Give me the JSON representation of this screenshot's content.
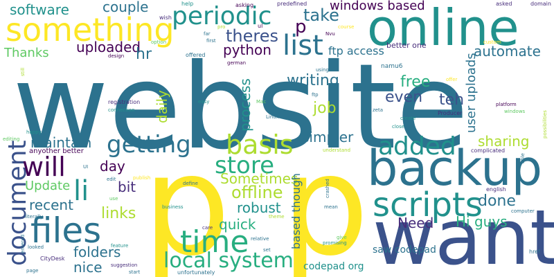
{
  "palette": {
    "dark-purple": "#440154",
    "indigo": "#472d7b",
    "slate-blue": "#3b528b",
    "steel-blue": "#2c728e",
    "teal": "#21918c",
    "sea-green": "#28ae80",
    "green": "#5ec962",
    "lime": "#addc30",
    "yellow": "#fde725"
  },
  "words": [
    {
      "text": "website"
    },
    {
      "text": "want"
    },
    {
      "text": "p"
    },
    {
      "text": "p"
    },
    {
      "text": "online"
    },
    {
      "text": "backup"
    },
    {
      "text": "something"
    },
    {
      "text": "files"
    },
    {
      "text": "scripts"
    },
    {
      "text": "periodic"
    },
    {
      "text": "list"
    },
    {
      "text": "document"
    },
    {
      "text": "time"
    },
    {
      "text": "will"
    },
    {
      "text": "basis"
    },
    {
      "text": "added"
    },
    {
      "text": "getting"
    },
    {
      "text": "store"
    },
    {
      "text": "local system"
    },
    {
      "text": "li"
    },
    {
      "text": "software"
    },
    {
      "text": "couple"
    },
    {
      "text": "take"
    },
    {
      "text": "windows based"
    },
    {
      "text": "theres"
    },
    {
      "text": "p"
    },
    {
      "text": "python"
    },
    {
      "text": "uploaded"
    },
    {
      "text": "hr"
    },
    {
      "text": "automate"
    },
    {
      "text": "ftp access"
    },
    {
      "text": "Thanks"
    },
    {
      "text": "writing"
    },
    {
      "text": "free"
    },
    {
      "text": "even"
    },
    {
      "text": "job"
    },
    {
      "text": "process"
    },
    {
      "text": "daily"
    },
    {
      "text": "user uploads"
    },
    {
      "text": "teh"
    },
    {
      "text": "maintain"
    },
    {
      "text": "simpler"
    },
    {
      "text": "sharing"
    },
    {
      "text": "day"
    },
    {
      "text": "bit"
    },
    {
      "text": "Sometimes"
    },
    {
      "text": "offline"
    },
    {
      "text": "Update"
    },
    {
      "text": "recent"
    },
    {
      "text": "robust"
    },
    {
      "text": "done"
    },
    {
      "text": "links"
    },
    {
      "text": "quick"
    },
    {
      "text": "Need"
    },
    {
      "text": "Hi guys"
    },
    {
      "text": "folders"
    },
    {
      "text": "nice"
    },
    {
      "text": "based though"
    },
    {
      "text": "saw codepad"
    },
    {
      "text": "codepad org"
    },
    {
      "text": "better one"
    },
    {
      "text": "namu6"
    },
    {
      "text": "predefined"
    },
    {
      "text": "help"
    },
    {
      "text": "asking"
    },
    {
      "text": "wish"
    },
    {
      "text": "asked"
    },
    {
      "text": "domain"
    },
    {
      "text": "option"
    },
    {
      "text": "pro"
    },
    {
      "text": "ul"
    },
    {
      "text": "far"
    },
    {
      "text": "first"
    },
    {
      "text": "course"
    },
    {
      "text": "Nvu"
    },
    {
      "text": "custom"
    },
    {
      "text": "design"
    },
    {
      "text": "offered"
    },
    {
      "text": "german"
    },
    {
      "text": "still"
    },
    {
      "text": "using"
    },
    {
      "text": "offer"
    },
    {
      "text": "registration"
    },
    {
      "text": "connection"
    },
    {
      "text": "easy"
    },
    {
      "text": "Mac"
    },
    {
      "text": "ftp"
    },
    {
      "text": "zeta"
    },
    {
      "text": "Producer"
    },
    {
      "text": "platform"
    },
    {
      "text": "windows"
    },
    {
      "text": "possibilities"
    },
    {
      "text": "create"
    },
    {
      "text": "close"
    },
    {
      "text": "Linux"
    },
    {
      "text": "happy"
    },
    {
      "text": "editing"
    },
    {
      "text": "anyother better"
    },
    {
      "text": "understand"
    },
    {
      "text": "complicated"
    },
    {
      "text": "able"
    },
    {
      "text": "UI"
    },
    {
      "text": "publish"
    },
    {
      "text": "edit"
    },
    {
      "text": "define"
    },
    {
      "text": "crashed"
    },
    {
      "text": "english"
    },
    {
      "text": "use"
    },
    {
      "text": "business"
    },
    {
      "text": "computer"
    },
    {
      "text": "literally"
    },
    {
      "text": "theme"
    },
    {
      "text": "mean"
    },
    {
      "text": "care"
    },
    {
      "text": "relative"
    },
    {
      "text": "give"
    },
    {
      "text": "entered"
    },
    {
      "text": "CityDesk"
    },
    {
      "text": "feature"
    },
    {
      "text": "promising"
    },
    {
      "text": "looked"
    },
    {
      "text": "suggestion"
    },
    {
      "text": "set"
    },
    {
      "text": "href"
    },
    {
      "text": "page"
    },
    {
      "text": "start"
    },
    {
      "text": "unfortunately"
    }
  ]
}
